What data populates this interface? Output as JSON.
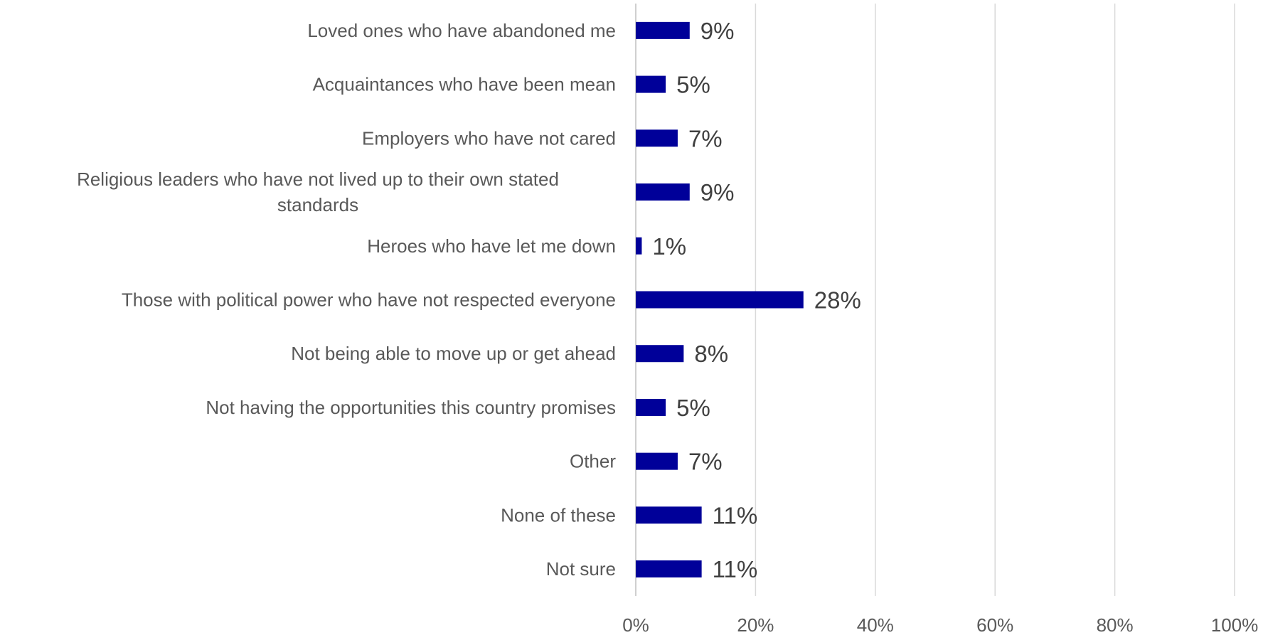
{
  "chart_data": {
    "type": "bar",
    "orientation": "horizontal",
    "categories": [
      "Loved ones who have abandoned me",
      "Acquaintances who have been mean",
      "Employers who have not cared",
      "Religious leaders who have not lived up to their own stated standards",
      "Heroes who have let me down",
      "Those with political power who have not respected everyone",
      "Not being able to move up or get ahead",
      "Not having the opportunities this country promises",
      "Other",
      "None of these",
      "Not sure"
    ],
    "category_lines": [
      [
        "Loved ones who have abandoned me"
      ],
      [
        "Acquaintances who have been mean"
      ],
      [
        "Employers who have not cared"
      ],
      [
        "Religious leaders who have not lived up to their own stated",
        "standards"
      ],
      [
        "Heroes who have let me down"
      ],
      [
        "Those with political power who have not respected everyone"
      ],
      [
        "Not being able to move up or get ahead"
      ],
      [
        "Not having the opportunities this country promises"
      ],
      [
        "Other"
      ],
      [
        "None of these"
      ],
      [
        "Not sure"
      ]
    ],
    "values": [
      9,
      5,
      7,
      9,
      1,
      28,
      8,
      5,
      7,
      11,
      11
    ],
    "data_labels": [
      "9%",
      "5%",
      "7%",
      "9%",
      "1%",
      "28%",
      "8%",
      "5%",
      "7%",
      "11%",
      "11%"
    ],
    "xlim": [
      0,
      100
    ],
    "x_ticks": [
      0,
      20,
      40,
      60,
      80,
      100
    ],
    "x_tick_labels": [
      "0%",
      "20%",
      "40%",
      "60%",
      "80%",
      "100%"
    ],
    "grid": true,
    "legend": "none",
    "title": "",
    "xlabel": "",
    "ylabel": "",
    "bar_color": "#000099"
  }
}
